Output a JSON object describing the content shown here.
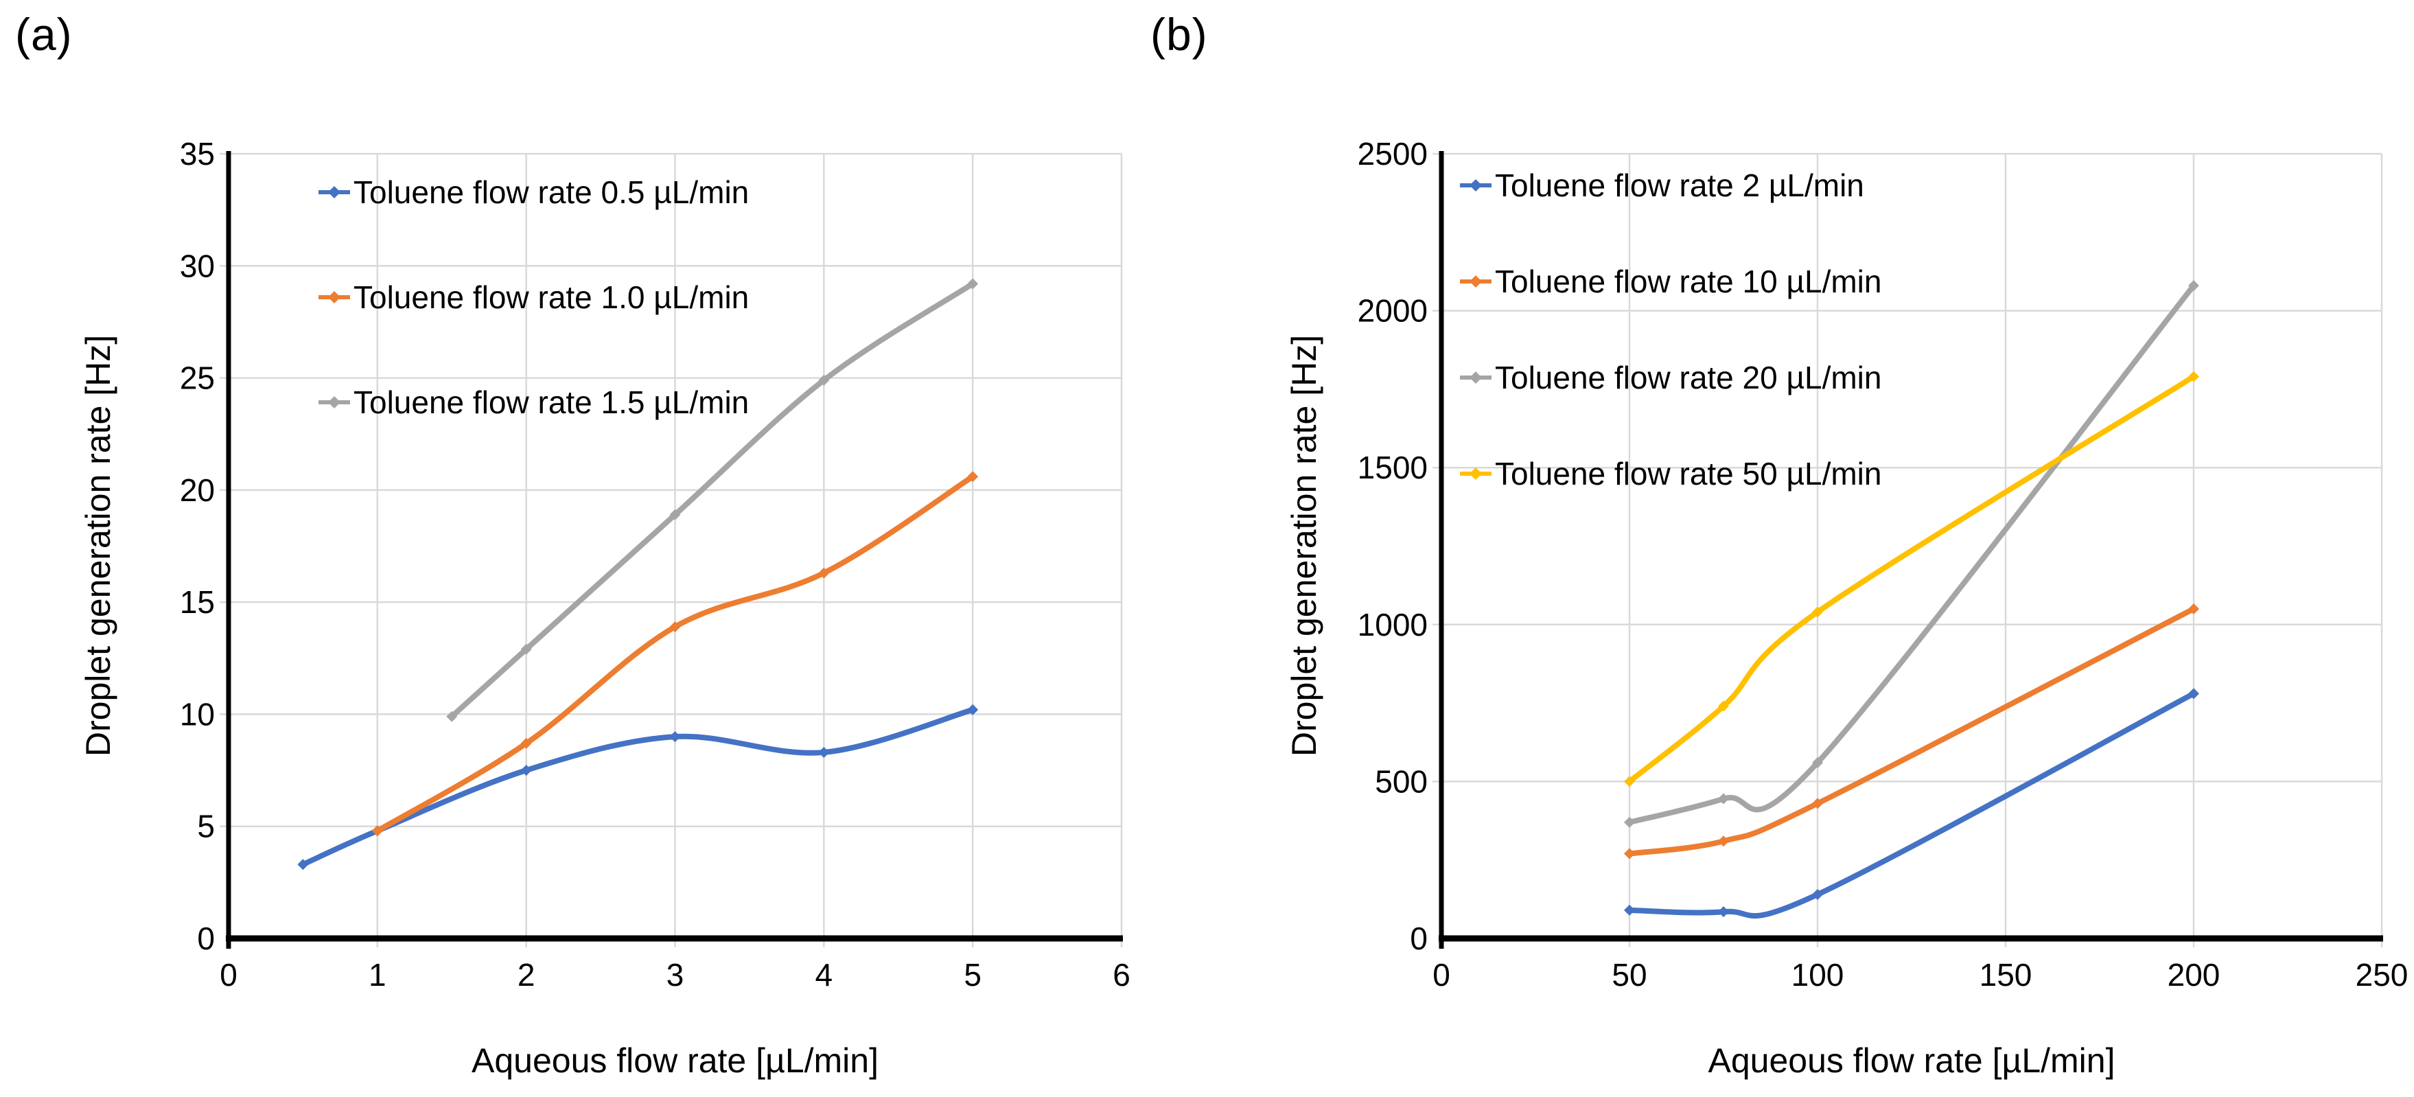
{
  "figure": {
    "background": "#ffffff",
    "panels": [
      {
        "label": "(a)",
        "xlabel": "Aqueous flow rate [µL/min]",
        "ylabel": "Droplet generation rate [Hz]"
      },
      {
        "label": "(b)",
        "xlabel": "Aqueous flow rate [µL/min]",
        "ylabel": "Droplet generation rate [Hz]"
      }
    ]
  },
  "colors": {
    "blue": "#4472C4",
    "orange": "#ED7D31",
    "gray": "#A5A5A5",
    "yellow": "#FFC000",
    "gridline": "#D9D9D9",
    "axis": "#000000",
    "text": "#000000"
  },
  "chart_data": [
    {
      "type": "line",
      "panel": "(a)",
      "xlabel": "Aqueous flow rate [µL/min]",
      "ylabel": "Droplet generation rate [Hz]",
      "xlim": [
        0,
        6
      ],
      "ylim": [
        0,
        35
      ],
      "xticks": [
        0,
        1,
        2,
        3,
        4,
        5,
        6
      ],
      "yticks": [
        0,
        5,
        10,
        15,
        20,
        25,
        30,
        35
      ],
      "grid": true,
      "smooth": true,
      "marker": "diamond",
      "legend_position": "top-left-inside",
      "series": [
        {
          "name": "Toluene flow rate 0.5 µL/min",
          "color": "#4472C4",
          "x": [
            0.5,
            1,
            2,
            3,
            4,
            5
          ],
          "y": [
            3.3,
            4.8,
            7.5,
            9.0,
            8.3,
            10.2
          ]
        },
        {
          "name": "Toluene flow rate 1.0 µL/min",
          "color": "#ED7D31",
          "x": [
            1,
            2,
            3,
            4,
            5
          ],
          "y": [
            4.8,
            8.7,
            13.9,
            16.3,
            20.6
          ]
        },
        {
          "name": "Toluene flow rate 1.5 µL/min",
          "color": "#A5A5A5",
          "x": [
            1.5,
            2,
            3,
            4,
            5
          ],
          "y": [
            9.9,
            12.9,
            18.9,
            24.9,
            29.2
          ]
        }
      ]
    },
    {
      "type": "line",
      "panel": "(b)",
      "xlabel": "Aqueous flow rate [µL/min]",
      "ylabel": "Droplet generation rate [Hz]",
      "xlim": [
        0,
        250
      ],
      "ylim": [
        0,
        2500
      ],
      "xticks": [
        0,
        50,
        100,
        150,
        200,
        250
      ],
      "yticks": [
        0,
        500,
        1000,
        1500,
        2000,
        2500
      ],
      "grid": true,
      "smooth": true,
      "marker": "diamond",
      "legend_position": "top-left-inside",
      "series": [
        {
          "name": "Toluene flow rate 2 µL/min",
          "color": "#4472C4",
          "x": [
            50,
            75,
            100,
            200
          ],
          "y": [
            90,
            85,
            140,
            780
          ]
        },
        {
          "name": "Toluene flow rate 10 µL/min",
          "color": "#ED7D31",
          "x": [
            50,
            75,
            100,
            200
          ],
          "y": [
            270,
            310,
            430,
            1050
          ]
        },
        {
          "name": "Toluene flow rate 20 µL/min",
          "color": "#A5A5A5",
          "x": [
            50,
            75,
            100,
            200
          ],
          "y": [
            370,
            445,
            560,
            2080
          ]
        },
        {
          "name": "Toluene flow rate 50 µL/min",
          "color": "#FFC000",
          "x": [
            50,
            75,
            100,
            200
          ],
          "y": [
            500,
            740,
            1040,
            1790
          ]
        }
      ]
    }
  ]
}
